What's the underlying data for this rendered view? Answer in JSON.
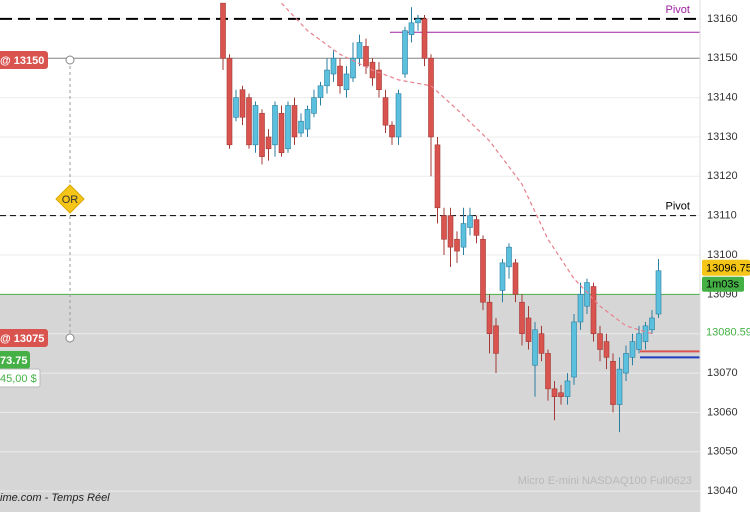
{
  "chart_data": {
    "type": "candlestick",
    "title": "Micro E-mini NASDAQ100 Full0623",
    "source": "ime.com - Temps Réel",
    "open": [
      13164,
      13150,
      13135,
      13142,
      13140,
      13128,
      13136,
      13130,
      13128,
      13136,
      13127,
      13138,
      13131,
      13132,
      13136,
      13140,
      13143,
      13146,
      13148,
      13142,
      13145,
      13150,
      13153,
      13149,
      13147,
      13140,
      13133,
      13130,
      13146,
      13156,
      13159,
      13160,
      13150,
      13128,
      13110,
      13110,
      13104,
      13102,
      13107,
      13109,
      13104,
      13088,
      13082,
      13091,
      13097,
      13098,
      13088,
      13084,
      13072,
      13080,
      13075,
      13066,
      13065,
      13064,
      13069,
      13083,
      13087,
      13092,
      13080,
      13078,
      13073,
      13062,
      13070,
      13074,
      13076,
      13078,
      13081,
      13085
    ],
    "high": [
      13164,
      13151,
      13142,
      13143,
      13141,
      13139,
      13137,
      13132,
      13139,
      13138,
      13139,
      13140,
      13136,
      13138,
      13142,
      13144,
      13150,
      13152,
      13150,
      13148,
      13154,
      13156,
      13155,
      13150,
      13149,
      13142,
      13134,
      13142,
      13158,
      13163,
      13161,
      13161,
      13151,
      13130,
      13112,
      13112,
      13106,
      13112,
      13112,
      13110,
      13105,
      13090,
      13084,
      13099,
      13103,
      13099,
      13090,
      13087,
      13083,
      13082,
      13076,
      13068,
      13067,
      13070,
      13085,
      13093,
      13094,
      13093,
      13082,
      13080,
      13075,
      13074,
      13077,
      13080,
      13082,
      13083,
      13086,
      13099
    ],
    "low": [
      13147,
      13127,
      13134,
      13133,
      13127,
      13126,
      13123,
      13124,
      13125,
      13125,
      13126,
      13128,
      13130,
      13130,
      13135,
      13138,
      13141,
      13144,
      13141,
      13140,
      13144,
      13148,
      13146,
      13143,
      13140,
      13131,
      13128,
      13128,
      13145,
      13154,
      13157,
      13148,
      13120,
      13108,
      13100,
      13097,
      13098,
      13100,
      13105,
      13103,
      13086,
      13075,
      13070,
      13088,
      13094,
      13088,
      13077,
      13076,
      13064,
      13073,
      13063,
      13058,
      13062,
      13062,
      13067,
      13081,
      13085,
      13078,
      13073,
      13071,
      13060,
      13055,
      13068,
      13072,
      13075,
      13076,
      13080,
      13084
    ],
    "close": [
      13150,
      13128,
      13140,
      13135,
      13128,
      13138,
      13125,
      13127,
      13138,
      13126,
      13138,
      13130,
      13134,
      13137,
      13140,
      13143,
      13147,
      13150,
      13143,
      13146,
      13150,
      13154,
      13148,
      13145,
      13142,
      13133,
      13130,
      13141,
      13157,
      13159,
      13160,
      13150,
      13130,
      13112,
      13104,
      13102,
      13101,
      13108,
      13110,
      13105,
      13088,
      13080,
      13075,
      13098,
      13102,
      13090,
      13080,
      13078,
      13081,
      13075,
      13066,
      13064,
      13064,
      13068,
      13083,
      13090,
      13093,
      13080,
      13076,
      13074,
      13062,
      13071,
      13075,
      13078,
      13080,
      13082,
      13084,
      13096
    ],
    "up_color": "#5bc0de",
    "down_color": "#d9534f",
    "ylim": [
      13034.7,
      13164.8
    ],
    "yticks": [
      13040,
      13050,
      13060,
      13070,
      13080,
      13090,
      13100,
      13110,
      13120,
      13130,
      13140,
      13150,
      13160
    ],
    "grid": true,
    "moving_average": {
      "color": "#e8808c",
      "x": [
        9,
        13,
        18,
        23,
        27,
        32,
        36,
        41,
        46,
        50,
        54,
        58,
        62,
        66
      ],
      "values": [
        13164,
        13157,
        13151,
        13147,
        13144.5,
        13143,
        13137,
        13129,
        13118,
        13104,
        13094,
        13087,
        13082,
        13080
      ]
    },
    "levels": [
      {
        "value": 13160,
        "color": "#000000",
        "label": "Pivot"
      },
      {
        "value": 13110,
        "color": "#000000",
        "label": "Pivot"
      },
      {
        "value": 13150,
        "color": "#8a8a8a"
      },
      {
        "value": 13090,
        "color": "#45b045"
      },
      {
        "value": 13156.6,
        "color": "#a020a0"
      },
      {
        "value": 13075.5,
        "color": "#d9534f"
      },
      {
        "value": 13074,
        "color": "#1f3fbf"
      }
    ],
    "price_labels": [
      {
        "value": 13096.75,
        "label": "13096.75",
        "color": "#f5c518"
      },
      {
        "value": 13080.59,
        "label": "13080.59",
        "color": "#45b045"
      }
    ],
    "timer": "1m03s",
    "badges": [
      "@ 13150",
      "@ 13075",
      "73.75",
      "45,00 $"
    ],
    "range_marker": "OR"
  }
}
